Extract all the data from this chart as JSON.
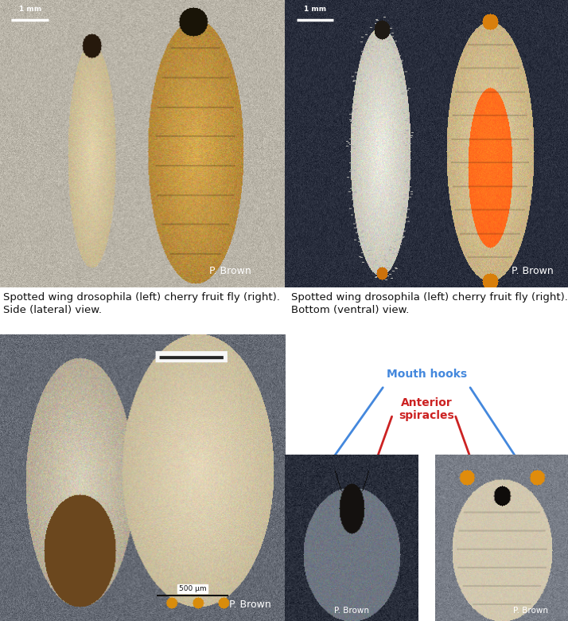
{
  "background_color": "#ffffff",
  "fig_width": 7.14,
  "fig_height": 7.8,
  "caption_top_left": "Spotted wing drosophila (left) cherry fruit fly (right).\nSide (lateral) view.",
  "caption_top_right": "Spotted wing drosophila (left) cherry fruit fly (right).\nBottom (ventral) view.",
  "label_mouth": "Mouth hooks",
  "label_spiracles": "Anterior\nspiracles",
  "credit": "P. Brown",
  "scale_label_top_left": "1 mm",
  "scale_label_top_right": "1 mm",
  "scale_label_bot_left": "500 μm",
  "arrow_blue_color": "#4488dd",
  "arrow_red_color": "#cc2222",
  "text_color_blue": "#4488dd",
  "text_color_red": "#cc2222",
  "caption_fontsize": 9.5,
  "credit_fontsize": 9,
  "label_fontsize": 10,
  "scale_fontsize": 6.5,
  "panel_tl_bg": [
    185,
    180,
    168
  ],
  "panel_tr_bg": [
    40,
    45,
    60
  ],
  "panel_bl_bg": [
    100,
    105,
    115
  ],
  "panel_br1_bg": [
    50,
    55,
    65
  ],
  "panel_br2_bg": [
    110,
    115,
    125
  ]
}
